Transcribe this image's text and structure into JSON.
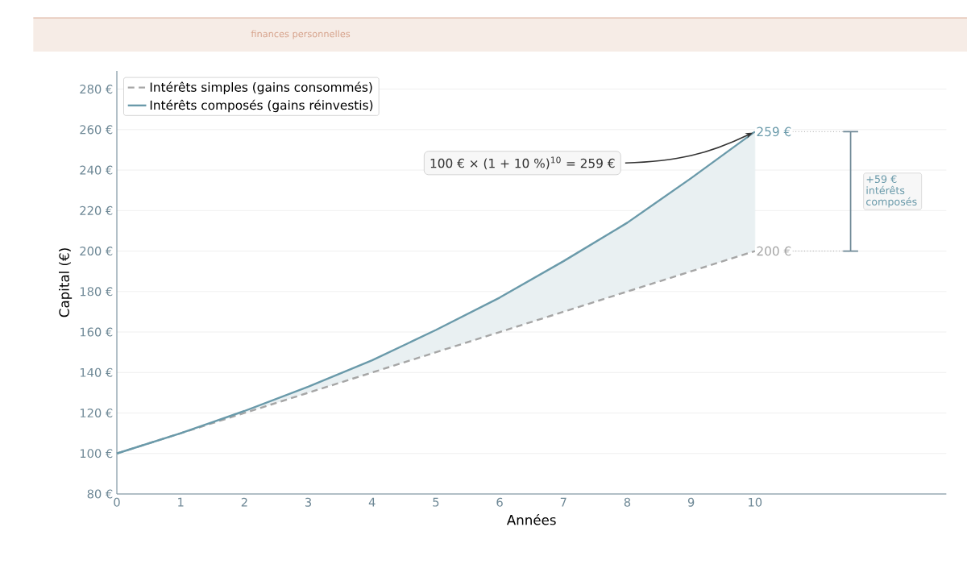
{
  "chart_data": {
    "type": "line",
    "subtitle": "finances personnelles",
    "xlabel": "Années",
    "ylabel": "Capital (€)",
    "x": [
      0,
      1,
      2,
      3,
      4,
      5,
      6,
      7,
      8,
      9,
      10
    ],
    "series": [
      {
        "name": "Intérêts simples (gains consommés)",
        "color": "#a6a6a6",
        "line_style": "dashed",
        "values": [
          100,
          110,
          120,
          130,
          140,
          150,
          160,
          170,
          180,
          190,
          200
        ],
        "value_labels": [
          null,
          null,
          null,
          null,
          null,
          null,
          null,
          null,
          null,
          null,
          "200 €"
        ]
      },
      {
        "name": "Intérêts composés (gains réinvestis)",
        "color": "#6a9aaa",
        "line_style": "solid",
        "values": [
          100,
          110,
          121,
          133,
          146,
          161,
          177,
          195,
          214,
          236,
          259
        ],
        "value_labels": [
          null,
          null,
          null,
          null,
          null,
          null,
          null,
          null,
          null,
          null,
          "259 €"
        ],
        "lower": [
          100,
          110,
          120,
          130,
          140,
          150,
          160,
          170,
          180,
          190,
          200
        ],
        "upper": [
          100,
          110,
          121,
          133,
          146,
          161,
          177,
          195,
          214,
          236,
          259
        ]
      }
    ],
    "xlim": [
      0,
      13
    ],
    "ylim": [
      80,
      289
    ],
    "xticks": [
      0,
      1,
      2,
      3,
      4,
      5,
      6,
      7,
      8,
      9,
      10
    ],
    "yticks": [
      {
        "value": 80,
        "label": "80 €"
      },
      {
        "value": 100,
        "label": "100 €"
      },
      {
        "value": 120,
        "label": "120 €"
      },
      {
        "value": 140,
        "label": "140 €"
      },
      {
        "value": 160,
        "label": "160 €"
      },
      {
        "value": 180,
        "label": "180 €"
      },
      {
        "value": 200,
        "label": "200 €"
      },
      {
        "value": 220,
        "label": "220 €"
      },
      {
        "value": 240,
        "label": "240 €"
      },
      {
        "value": 260,
        "label": "260 €"
      },
      {
        "value": 280,
        "label": "280 €"
      }
    ],
    "grid": "y",
    "legend": "top left",
    "marker": "none",
    "annotations": [
      {
        "text": "100 € × (1 + 10 %)$^{10}$ = 259 €",
        "x": 10,
        "y": 259
      },
      "+59 € intérêts composés"
    ]
  }
}
